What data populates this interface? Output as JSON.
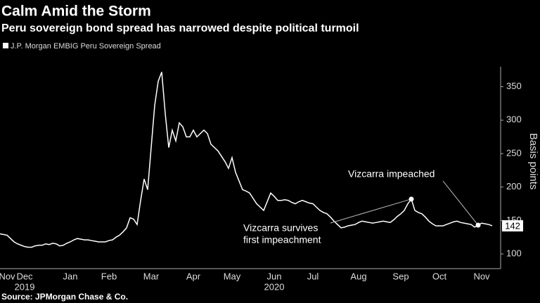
{
  "chart_data": {
    "type": "line",
    "title": "Calm Amid the Storm",
    "subtitle": "Peru sovereign bond spread has narrowed despite political turmoil",
    "y_axis_label": "Basis points",
    "source": "Source: JPMorgan Chase & Co.",
    "categories": [
      null,
      null,
      "Nov",
      null,
      null,
      null,
      null,
      "Dec",
      null,
      null,
      null,
      null,
      null,
      null,
      null,
      null,
      null,
      null,
      null,
      null,
      "Jan",
      null,
      null,
      null,
      null,
      null,
      null,
      null,
      null,
      null,
      null,
      "Feb",
      null,
      null,
      null,
      null,
      null,
      null,
      null,
      null,
      null,
      null,
      null,
      "Mar",
      null,
      null,
      null,
      null,
      null,
      null,
      null,
      null,
      null,
      null,
      null,
      "Apr",
      null,
      null,
      null,
      null,
      null,
      null,
      null,
      null,
      null,
      null,
      "May",
      null,
      null,
      null,
      null,
      null,
      null,
      null,
      null,
      null,
      null,
      null,
      "Jun",
      null,
      null,
      null,
      null,
      null,
      null,
      null,
      null,
      null,
      null,
      "Jul",
      null,
      null,
      null,
      null,
      null,
      null,
      null,
      null,
      null,
      null,
      null,
      null,
      "Aug",
      null,
      null,
      null,
      null,
      null,
      null,
      null,
      null,
      null,
      null,
      null,
      "Sep",
      null,
      null,
      null,
      null,
      null,
      null,
      null,
      null,
      null,
      null,
      "Oct",
      null,
      null,
      null,
      null,
      null,
      null,
      null,
      null,
      null,
      null,
      null,
      "Nov",
      null,
      null,
      null
    ],
    "year_categories": [
      null,
      null,
      null,
      null,
      null,
      null,
      null,
      "2019",
      null,
      null,
      null,
      null,
      null,
      null,
      null,
      null,
      null,
      null,
      null,
      null,
      null,
      null,
      null,
      null,
      null,
      null,
      null,
      null,
      null,
      null,
      null,
      null,
      null,
      null,
      null,
      null,
      null,
      null,
      null,
      null,
      null,
      null,
      null,
      null,
      null,
      null,
      null,
      null,
      null,
      null,
      null,
      null,
      null,
      null,
      null,
      null,
      null,
      null,
      null,
      null,
      null,
      null,
      null,
      null,
      null,
      null,
      null,
      null,
      null,
      null,
      null,
      null,
      null,
      null,
      null,
      null,
      null,
      null,
      "2020",
      null,
      null,
      null,
      null,
      null,
      null,
      null,
      null,
      null,
      null,
      null,
      null,
      null,
      null,
      null,
      null,
      null,
      null,
      null,
      null,
      null,
      null,
      null,
      null,
      null,
      null,
      null,
      null,
      null,
      null,
      null,
      null,
      null,
      null,
      null,
      null,
      null,
      null,
      null,
      null,
      null,
      null,
      null,
      null,
      null,
      null,
      null,
      null,
      null,
      null,
      null,
      null,
      null,
      null,
      null,
      null,
      null
    ],
    "series": [
      {
        "name": "J.P. Morgan EMBIG Peru Sovereign Spread",
        "color": "#ffffff",
        "values": [
          130,
          129,
          128,
          123,
          118,
          115,
          113,
          111,
          110,
          110,
          112,
          113,
          113,
          115,
          114,
          116,
          115,
          112,
          113,
          116,
          118,
          121,
          123,
          122,
          121,
          121,
          120,
          119,
          118,
          118,
          118,
          120,
          121,
          125,
          128,
          133,
          139,
          154,
          152,
          144,
          180,
          212,
          196,
          259,
          322,
          358,
          372,
          310,
          259,
          285,
          269,
          296,
          290,
          275,
          275,
          285,
          275,
          280,
          285,
          280,
          264,
          259,
          254,
          246,
          238,
          228,
          244,
          222,
          209,
          196,
          194,
          191,
          183,
          175,
          170,
          165,
          178,
          191,
          186,
          180,
          180,
          181,
          180,
          177,
          175,
          178,
          180,
          178,
          176,
          175,
          170,
          165,
          162,
          160,
          155,
          149,
          144,
          139,
          140,
          142,
          143,
          144,
          147,
          149,
          148,
          147,
          146,
          147,
          148,
          149,
          148,
          147,
          151,
          156,
          160,
          165,
          175,
          182,
          165,
          162,
          160,
          155,
          149,
          145,
          142,
          142,
          142,
          144,
          146,
          148,
          149,
          147,
          146,
          145,
          144,
          140,
          143,
          146,
          145,
          144,
          142
        ]
      }
    ],
    "annotations": [
      {
        "lines": [
          "Vizcarra survives",
          "first impeachment"
        ]
      },
      {
        "lines": [
          "Vizcarra impeached"
        ]
      }
    ],
    "ylim": [
      78,
      380
    ],
    "yticks": [
      100,
      150,
      200,
      250,
      300,
      350
    ],
    "y_axis_side": "right",
    "grid": false
  }
}
